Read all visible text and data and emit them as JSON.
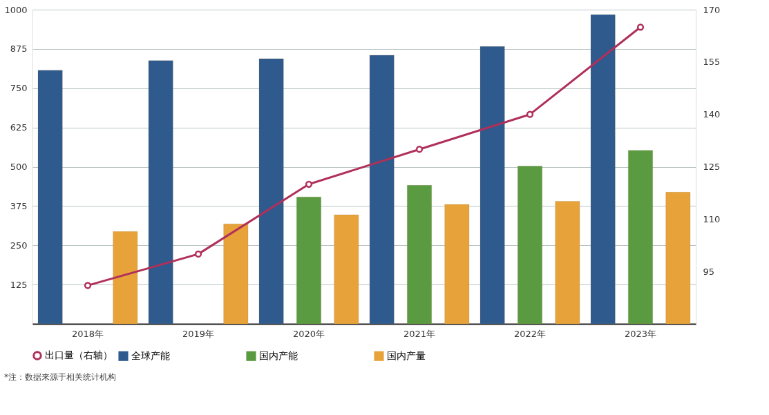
{
  "chart_data": {
    "type": "bar",
    "categories": [
      "2018年",
      "2019年",
      "2020年",
      "2021年",
      "2022年",
      "2023年"
    ],
    "series": [
      {
        "name": "全球产能",
        "color": "#2e5a8e",
        "values": [
          807,
          838,
          844,
          855,
          883,
          984
        ]
      },
      {
        "name": "国内产能",
        "color": "#5a9a40",
        "values": [
          null,
          null,
          404,
          441,
          502,
          552
        ]
      },
      {
        "name": "国内产量",
        "color": "#e8a23a",
        "values": [
          294,
          318,
          347,
          380,
          390,
          419
        ]
      },
      {
        "name": "出口量（右轴）",
        "color": "#b0305a",
        "type": "line",
        "axis": "y2",
        "marker": "circle",
        "values": [
          91,
          100,
          120,
          130,
          140,
          165
        ]
      }
    ],
    "ylim": [
      0,
      1000
    ],
    "yticks": [
      125,
      250,
      375,
      500,
      625,
      750,
      875,
      1000
    ],
    "y2lim": [
      80,
      170
    ],
    "y2ticks": [
      95,
      110,
      125,
      140,
      155,
      170
    ],
    "grid": "y",
    "legend": "bottom",
    "annotations": [
      "*注：数据来源于相关统计机构"
    ]
  }
}
